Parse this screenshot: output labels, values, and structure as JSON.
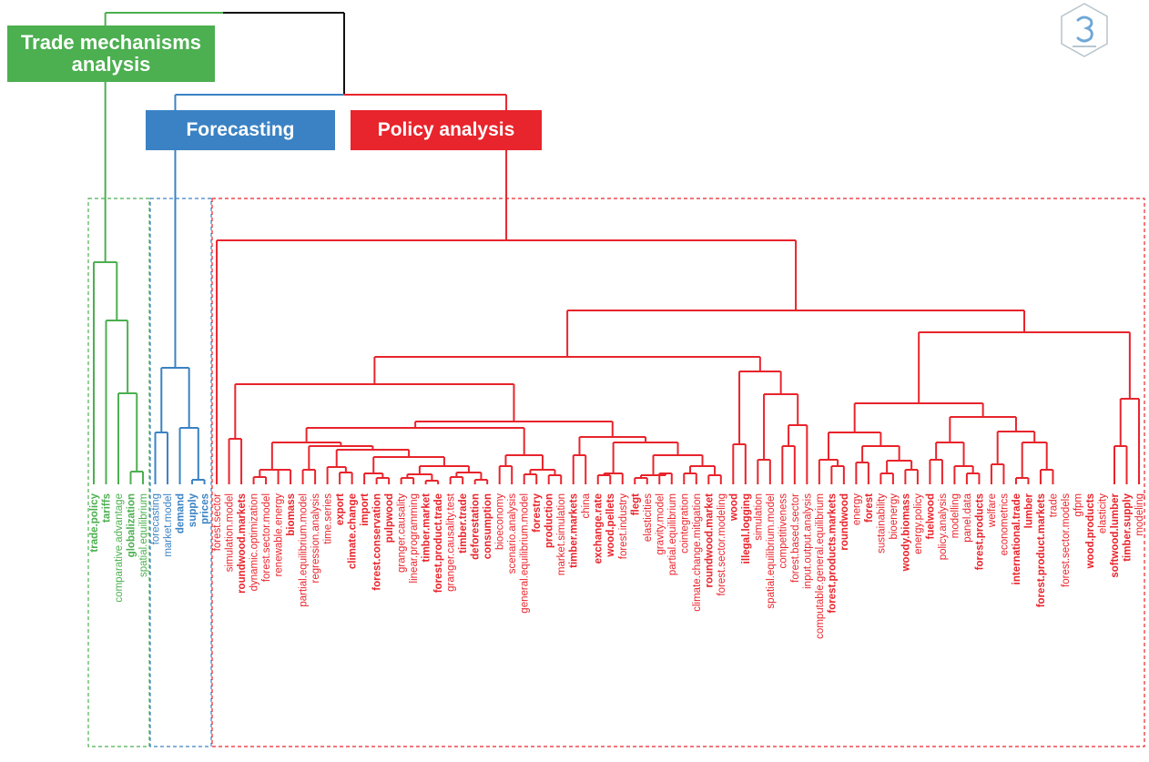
{
  "colors": {
    "trade": "#4caf50",
    "forecast": "#3a82c4",
    "policy": "#e8242c",
    "root": "#111111"
  },
  "clusters": {
    "trade": {
      "label": "Trade mechanisms analysis"
    },
    "forecast": {
      "label": "Forecasting"
    },
    "policy": {
      "label": "Policy analysis"
    }
  },
  "logo": {
    "icon": "hexagon-logo-icon"
  },
  "leaves": [
    {
      "t": "trade.policy",
      "c": "trade",
      "b": true
    },
    {
      "t": "tariffs",
      "c": "trade",
      "b": true
    },
    {
      "t": "comparative.advantage",
      "c": "trade",
      "b": false
    },
    {
      "t": "globalization",
      "c": "trade",
      "b": true
    },
    {
      "t": "spatial.equilibrium",
      "c": "trade",
      "b": false
    },
    {
      "t": "forecasting",
      "c": "forecast",
      "b": false
    },
    {
      "t": "market.model",
      "c": "forecast",
      "b": false
    },
    {
      "t": "demand",
      "c": "forecast",
      "b": true
    },
    {
      "t": "supply",
      "c": "forecast",
      "b": true
    },
    {
      "t": "prices",
      "c": "forecast",
      "b": true
    },
    {
      "t": "forest.sector",
      "c": "policy",
      "b": false
    },
    {
      "t": "simulation.model",
      "c": "policy",
      "b": false
    },
    {
      "t": "roundwood.markets",
      "c": "policy",
      "b": true
    },
    {
      "t": "dynamic.optimization",
      "c": "policy",
      "b": false
    },
    {
      "t": "forest.sector.model",
      "c": "policy",
      "b": false
    },
    {
      "t": "renewable.energy",
      "c": "policy",
      "b": false
    },
    {
      "t": "biomass",
      "c": "policy",
      "b": true
    },
    {
      "t": "partial.equilibrium.model",
      "c": "policy",
      "b": false
    },
    {
      "t": "regression.analysis",
      "c": "policy",
      "b": false
    },
    {
      "t": "time.series",
      "c": "policy",
      "b": false
    },
    {
      "t": "export",
      "c": "policy",
      "b": true
    },
    {
      "t": "climate.change",
      "c": "policy",
      "b": true
    },
    {
      "t": "import",
      "c": "policy",
      "b": true
    },
    {
      "t": "forest.conservation",
      "c": "policy",
      "b": true
    },
    {
      "t": "pulpwood",
      "c": "policy",
      "b": true
    },
    {
      "t": "granger.causality",
      "c": "policy",
      "b": false
    },
    {
      "t": "linear.programming",
      "c": "policy",
      "b": false
    },
    {
      "t": "timber.market",
      "c": "policy",
      "b": true
    },
    {
      "t": "forest.product.trade",
      "c": "policy",
      "b": true
    },
    {
      "t": "granger.causality.test",
      "c": "policy",
      "b": false
    },
    {
      "t": "timber.trade",
      "c": "policy",
      "b": true
    },
    {
      "t": "deforestation",
      "c": "policy",
      "b": true
    },
    {
      "t": "consumption",
      "c": "policy",
      "b": true
    },
    {
      "t": "bioeconomy",
      "c": "policy",
      "b": false
    },
    {
      "t": "scenario.analysis",
      "c": "policy",
      "b": false
    },
    {
      "t": "general.equilibrium.model",
      "c": "policy",
      "b": false
    },
    {
      "t": "forestry",
      "c": "policy",
      "b": true
    },
    {
      "t": "production",
      "c": "policy",
      "b": true
    },
    {
      "t": "market.simulation",
      "c": "policy",
      "b": false
    },
    {
      "t": "timber.markets",
      "c": "policy",
      "b": true
    },
    {
      "t": "china",
      "c": "policy",
      "b": false
    },
    {
      "t": "exchange.rate",
      "c": "policy",
      "b": true
    },
    {
      "t": "wood.pellets",
      "c": "policy",
      "b": true
    },
    {
      "t": "forest.industry",
      "c": "policy",
      "b": false
    },
    {
      "t": "flegt",
      "c": "policy",
      "b": true
    },
    {
      "t": "elasticities",
      "c": "policy",
      "b": false
    },
    {
      "t": "gravity.model",
      "c": "policy",
      "b": false
    },
    {
      "t": "partial.equilibrium",
      "c": "policy",
      "b": false
    },
    {
      "t": "cointegration",
      "c": "policy",
      "b": false
    },
    {
      "t": "climate.change.mitigation",
      "c": "policy",
      "b": false
    },
    {
      "t": "roundwood.market",
      "c": "policy",
      "b": true
    },
    {
      "t": "forest.sector.modeling",
      "c": "policy",
      "b": false
    },
    {
      "t": "wood",
      "c": "policy",
      "b": true
    },
    {
      "t": "illegal.logging",
      "c": "policy",
      "b": true
    },
    {
      "t": "simulation",
      "c": "policy",
      "b": false
    },
    {
      "t": "spatial.equilibrium.model",
      "c": "policy",
      "b": false
    },
    {
      "t": "competitiveness",
      "c": "policy",
      "b": false
    },
    {
      "t": "forest.based.sector",
      "c": "policy",
      "b": false
    },
    {
      "t": "input.output.analysis",
      "c": "policy",
      "b": false
    },
    {
      "t": "computable.general.equilibrium",
      "c": "policy",
      "b": false
    },
    {
      "t": "forest.products.markets",
      "c": "policy",
      "b": true
    },
    {
      "t": "roundwood",
      "c": "policy",
      "b": true
    },
    {
      "t": "energy",
      "c": "policy",
      "b": false
    },
    {
      "t": "forest",
      "c": "policy",
      "b": true
    },
    {
      "t": "sustainability",
      "c": "policy",
      "b": false
    },
    {
      "t": "bioenergy",
      "c": "policy",
      "b": false
    },
    {
      "t": "woody.biomass",
      "c": "policy",
      "b": true
    },
    {
      "t": "energy.policy",
      "c": "policy",
      "b": false
    },
    {
      "t": "fuelwood",
      "c": "policy",
      "b": true
    },
    {
      "t": "policy.analysis",
      "c": "policy",
      "b": false
    },
    {
      "t": "modelling",
      "c": "policy",
      "b": false
    },
    {
      "t": "panel.data",
      "c": "policy",
      "b": false
    },
    {
      "t": "forest.products",
      "c": "policy",
      "b": true
    },
    {
      "t": "welfare",
      "c": "policy",
      "b": false
    },
    {
      "t": "econometrics",
      "c": "policy",
      "b": false
    },
    {
      "t": "international.trade",
      "c": "policy",
      "b": true
    },
    {
      "t": "lumber",
      "c": "policy",
      "b": true
    },
    {
      "t": "forest.product.markets",
      "c": "policy",
      "b": true
    },
    {
      "t": "trade",
      "c": "policy",
      "b": false
    },
    {
      "t": "forest.sector.models",
      "c": "policy",
      "b": false
    },
    {
      "t": "gfpm",
      "c": "policy",
      "b": false
    },
    {
      "t": "wood.products",
      "c": "policy",
      "b": true
    },
    {
      "t": "elasticity",
      "c": "policy",
      "b": false
    },
    {
      "t": "softwood.lumber",
      "c": "policy",
      "b": true
    },
    {
      "t": "timber.supply",
      "c": "policy",
      "b": true
    },
    {
      "t": "modeling",
      "c": "policy",
      "b": false
    }
  ]
}
